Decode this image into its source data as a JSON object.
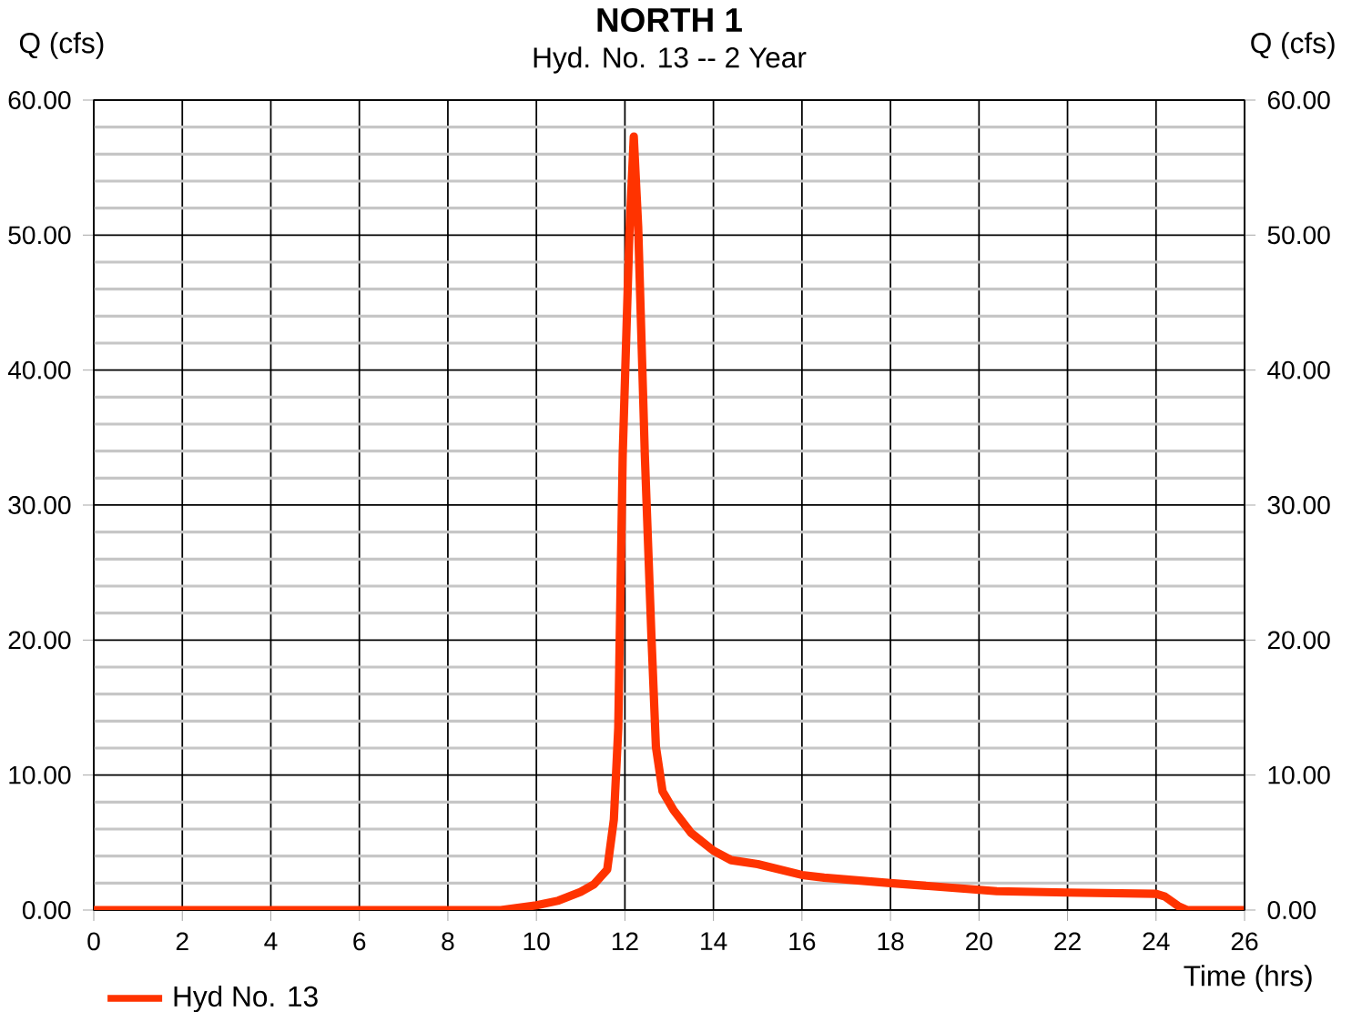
{
  "chart_data": {
    "type": "line",
    "title": "NORTH 1",
    "subtitle": "Hyd. No. 13 -- 2 Year",
    "xlabel": "Time (hrs)",
    "ylabel": "Q (cfs)",
    "y2label": "Q (cfs)",
    "xlim": [
      0,
      26
    ],
    "xticks": [
      0,
      2,
      4,
      6,
      8,
      10,
      12,
      14,
      16,
      18,
      20,
      22,
      24,
      26
    ],
    "ylim": [
      0,
      60
    ],
    "yticks": [
      {
        "value": 0,
        "label": "0.00"
      },
      {
        "value": 10,
        "label": "10.00"
      },
      {
        "value": 20,
        "label": "20.00"
      },
      {
        "value": 30,
        "label": "30.00"
      },
      {
        "value": 40,
        "label": "40.00"
      },
      {
        "value": 50,
        "label": "50.00"
      },
      {
        "value": 60,
        "label": "60.00"
      }
    ],
    "y2lim": [
      0,
      60
    ],
    "y2ticks": [
      {
        "value": 0,
        "label": "0.00"
      },
      {
        "value": 10,
        "label": "10.00"
      },
      {
        "value": 20,
        "label": "20.00"
      },
      {
        "value": 30,
        "label": "30.00"
      },
      {
        "value": 40,
        "label": "40.00"
      },
      {
        "value": 50,
        "label": "50.00"
      },
      {
        "value": 60,
        "label": "60.00"
      }
    ],
    "grid": true,
    "legend": "bottom left",
    "marker": "none",
    "line_style": "solid",
    "series": [
      {
        "name": "Hyd No. 13",
        "color": "#ff3300",
        "x": [
          0,
          9.2,
          10,
          10.5,
          11,
          11.3,
          11.6,
          11.75,
          11.85,
          11.95,
          12.1,
          12.2,
          12.3,
          12.45,
          12.6,
          12.7,
          12.85,
          13.1,
          13.5,
          14,
          14.4,
          15,
          16,
          16.5,
          18,
          20,
          20.4,
          22,
          24,
          24.2,
          24.5,
          24.7,
          26
        ],
        "values": [
          0,
          0,
          0.35,
          0.7,
          1.35,
          1.9,
          3.0,
          6.7,
          13.5,
          33.7,
          50,
          57.3,
          50.6,
          33.7,
          20.2,
          12.1,
          8.8,
          7.4,
          5.7,
          4.4,
          3.7,
          3.4,
          2.6,
          2.4,
          2.0,
          1.5,
          1.4,
          1.3,
          1.2,
          1.0,
          0.3,
          0,
          0
        ]
      }
    ]
  }
}
